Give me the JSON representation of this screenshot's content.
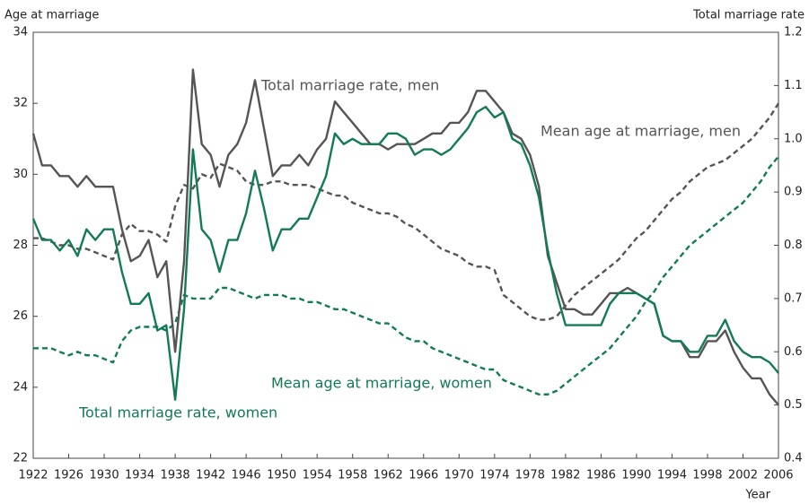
{
  "chart_data": {
    "type": "line",
    "y_label": "Age at marriage",
    "y2_label": "Total marriage rate",
    "x_label": "Year",
    "x": [
      1922,
      1923,
      1924,
      1925,
      1926,
      1927,
      1928,
      1929,
      1930,
      1931,
      1932,
      1933,
      1934,
      1935,
      1936,
      1937,
      1938,
      1939,
      1940,
      1941,
      1942,
      1943,
      1944,
      1945,
      1946,
      1947,
      1948,
      1949,
      1950,
      1951,
      1952,
      1953,
      1954,
      1955,
      1956,
      1957,
      1958,
      1959,
      1960,
      1961,
      1962,
      1963,
      1964,
      1965,
      1966,
      1967,
      1968,
      1969,
      1970,
      1971,
      1972,
      1973,
      1974,
      1975,
      1976,
      1977,
      1978,
      1979,
      1980,
      1981,
      1982,
      1983,
      1984,
      1985,
      1986,
      1987,
      1988,
      1989,
      1990,
      1991,
      1992,
      1993,
      1994,
      1995,
      1996,
      1997,
      1998,
      1999,
      2000,
      2001,
      2002,
      2003,
      2004,
      2005,
      2006
    ],
    "xlim": [
      1922,
      2006
    ],
    "xticks": [
      1922,
      1926,
      1930,
      1934,
      1938,
      1942,
      1946,
      1950,
      1954,
      1958,
      1962,
      1966,
      1970,
      1974,
      1978,
      1982,
      1986,
      1990,
      1994,
      1998,
      2002,
      2006
    ],
    "ylim": [
      22,
      34
    ],
    "yticks": [
      22,
      24,
      26,
      28,
      30,
      32,
      34
    ],
    "y2lim": [
      0.4,
      1.2
    ],
    "y2ticks": [
      0.4,
      0.5,
      0.6,
      0.7,
      0.8,
      0.9,
      {
        "value": 1,
        "label": "1.0"
      },
      1.1,
      1.2
    ],
    "grid": false,
    "series": [
      {
        "name": "Mean age at marriage, men",
        "color": "#555555",
        "dashed": true,
        "values": [
          28.2,
          28.2,
          28.1,
          28.0,
          28.0,
          27.9,
          27.9,
          27.8,
          27.7,
          27.6,
          28.3,
          28.6,
          28.4,
          28.4,
          28.3,
          28.1,
          29.1,
          29.7,
          29.6,
          30.0,
          29.9,
          30.3,
          30.2,
          30.1,
          29.8,
          29.7,
          29.7,
          29.8,
          29.8,
          29.7,
          29.7,
          29.7,
          29.6,
          29.5,
          29.4,
          29.4,
          29.2,
          29.1,
          29.0,
          28.9,
          28.9,
          28.8,
          28.6,
          28.5,
          28.3,
          28.1,
          27.9,
          27.8,
          27.7,
          27.5,
          27.4,
          27.4,
          27.3,
          26.6,
          26.4,
          26.2,
          26.0,
          25.9,
          25.9,
          26.0,
          26.3,
          26.6,
          26.8,
          27.0,
          27.2,
          27.4,
          27.6,
          27.9,
          28.2,
          28.4,
          28.7,
          29.0,
          29.3,
          29.5,
          29.8,
          30.0,
          30.2,
          30.3,
          30.4,
          30.6,
          30.8,
          31.0,
          31.3,
          31.6,
          32.0
        ]
      },
      {
        "name": "Mean age at marriage, women",
        "color": "#127a58",
        "dashed": true,
        "values": [
          25.1,
          25.1,
          25.1,
          25.0,
          24.9,
          25.0,
          24.9,
          24.9,
          24.8,
          24.7,
          25.3,
          25.6,
          25.7,
          25.7,
          25.7,
          25.6,
          25.8,
          26.6,
          26.5,
          26.5,
          26.5,
          26.8,
          26.8,
          26.7,
          26.6,
          26.5,
          26.6,
          26.6,
          26.6,
          26.5,
          26.5,
          26.4,
          26.4,
          26.3,
          26.2,
          26.2,
          26.1,
          26.0,
          25.9,
          25.8,
          25.8,
          25.6,
          25.4,
          25.3,
          25.3,
          25.1,
          25.0,
          24.9,
          24.8,
          24.7,
          24.6,
          24.5,
          24.5,
          24.2,
          24.1,
          24.0,
          23.9,
          23.8,
          23.8,
          23.9,
          24.1,
          24.3,
          24.5,
          24.7,
          24.9,
          25.1,
          25.4,
          25.7,
          26.0,
          26.4,
          26.7,
          27.1,
          27.4,
          27.7,
          28.0,
          28.2,
          28.4,
          28.6,
          28.8,
          29.0,
          29.2,
          29.5,
          29.8,
          30.2,
          30.5
        ]
      },
      {
        "name": "Total marriage rate, men",
        "color": "#555555",
        "dashed": false,
        "axis": "y2",
        "values": [
          1.01,
          0.95,
          0.95,
          0.93,
          0.93,
          0.91,
          0.93,
          0.91,
          0.91,
          0.91,
          0.83,
          0.77,
          0.78,
          0.81,
          0.74,
          0.77,
          0.6,
          0.77,
          1.13,
          0.99,
          0.97,
          0.91,
          0.97,
          0.99,
          1.03,
          1.11,
          1.02,
          0.93,
          0.95,
          0.95,
          0.97,
          0.95,
          0.98,
          1.0,
          1.07,
          1.05,
          1.03,
          1.01,
          0.99,
          0.99,
          0.98,
          0.99,
          0.99,
          0.99,
          1.0,
          1.01,
          1.01,
          1.03,
          1.03,
          1.05,
          1.09,
          1.09,
          1.07,
          1.05,
          1.01,
          1.0,
          0.97,
          0.91,
          0.78,
          0.73,
          0.68,
          0.68,
          0.67,
          0.67,
          0.69,
          0.71,
          0.71,
          0.72,
          0.71,
          0.7,
          0.69,
          0.63,
          0.62,
          0.62,
          0.59,
          0.59,
          0.62,
          0.62,
          0.64,
          0.6,
          0.57,
          0.55,
          0.55,
          0.52,
          0.5
        ]
      },
      {
        "name": "Total marriage rate, women",
        "color": "#127a58",
        "dashed": false,
        "axis": "y2",
        "values": [
          0.85,
          0.81,
          0.81,
          0.79,
          0.81,
          0.78,
          0.83,
          0.81,
          0.83,
          0.83,
          0.75,
          0.69,
          0.69,
          0.71,
          0.64,
          0.65,
          0.51,
          0.68,
          0.98,
          0.83,
          0.81,
          0.75,
          0.81,
          0.81,
          0.86,
          0.94,
          0.87,
          0.79,
          0.83,
          0.83,
          0.85,
          0.85,
          0.89,
          0.93,
          1.01,
          0.99,
          1.0,
          0.99,
          0.99,
          0.99,
          1.01,
          1.01,
          1.0,
          0.97,
          0.98,
          0.98,
          0.97,
          0.98,
          1.0,
          1.02,
          1.05,
          1.06,
          1.04,
          1.05,
          1.0,
          0.99,
          0.95,
          0.89,
          0.79,
          0.71,
          0.65,
          0.65,
          0.65,
          0.65,
          0.65,
          0.69,
          0.71,
          0.71,
          0.71,
          0.7,
          0.69,
          0.63,
          0.62,
          0.62,
          0.6,
          0.6,
          0.63,
          0.63,
          0.66,
          0.62,
          0.6,
          0.59,
          0.59,
          0.58,
          0.56
        ]
      }
    ]
  }
}
